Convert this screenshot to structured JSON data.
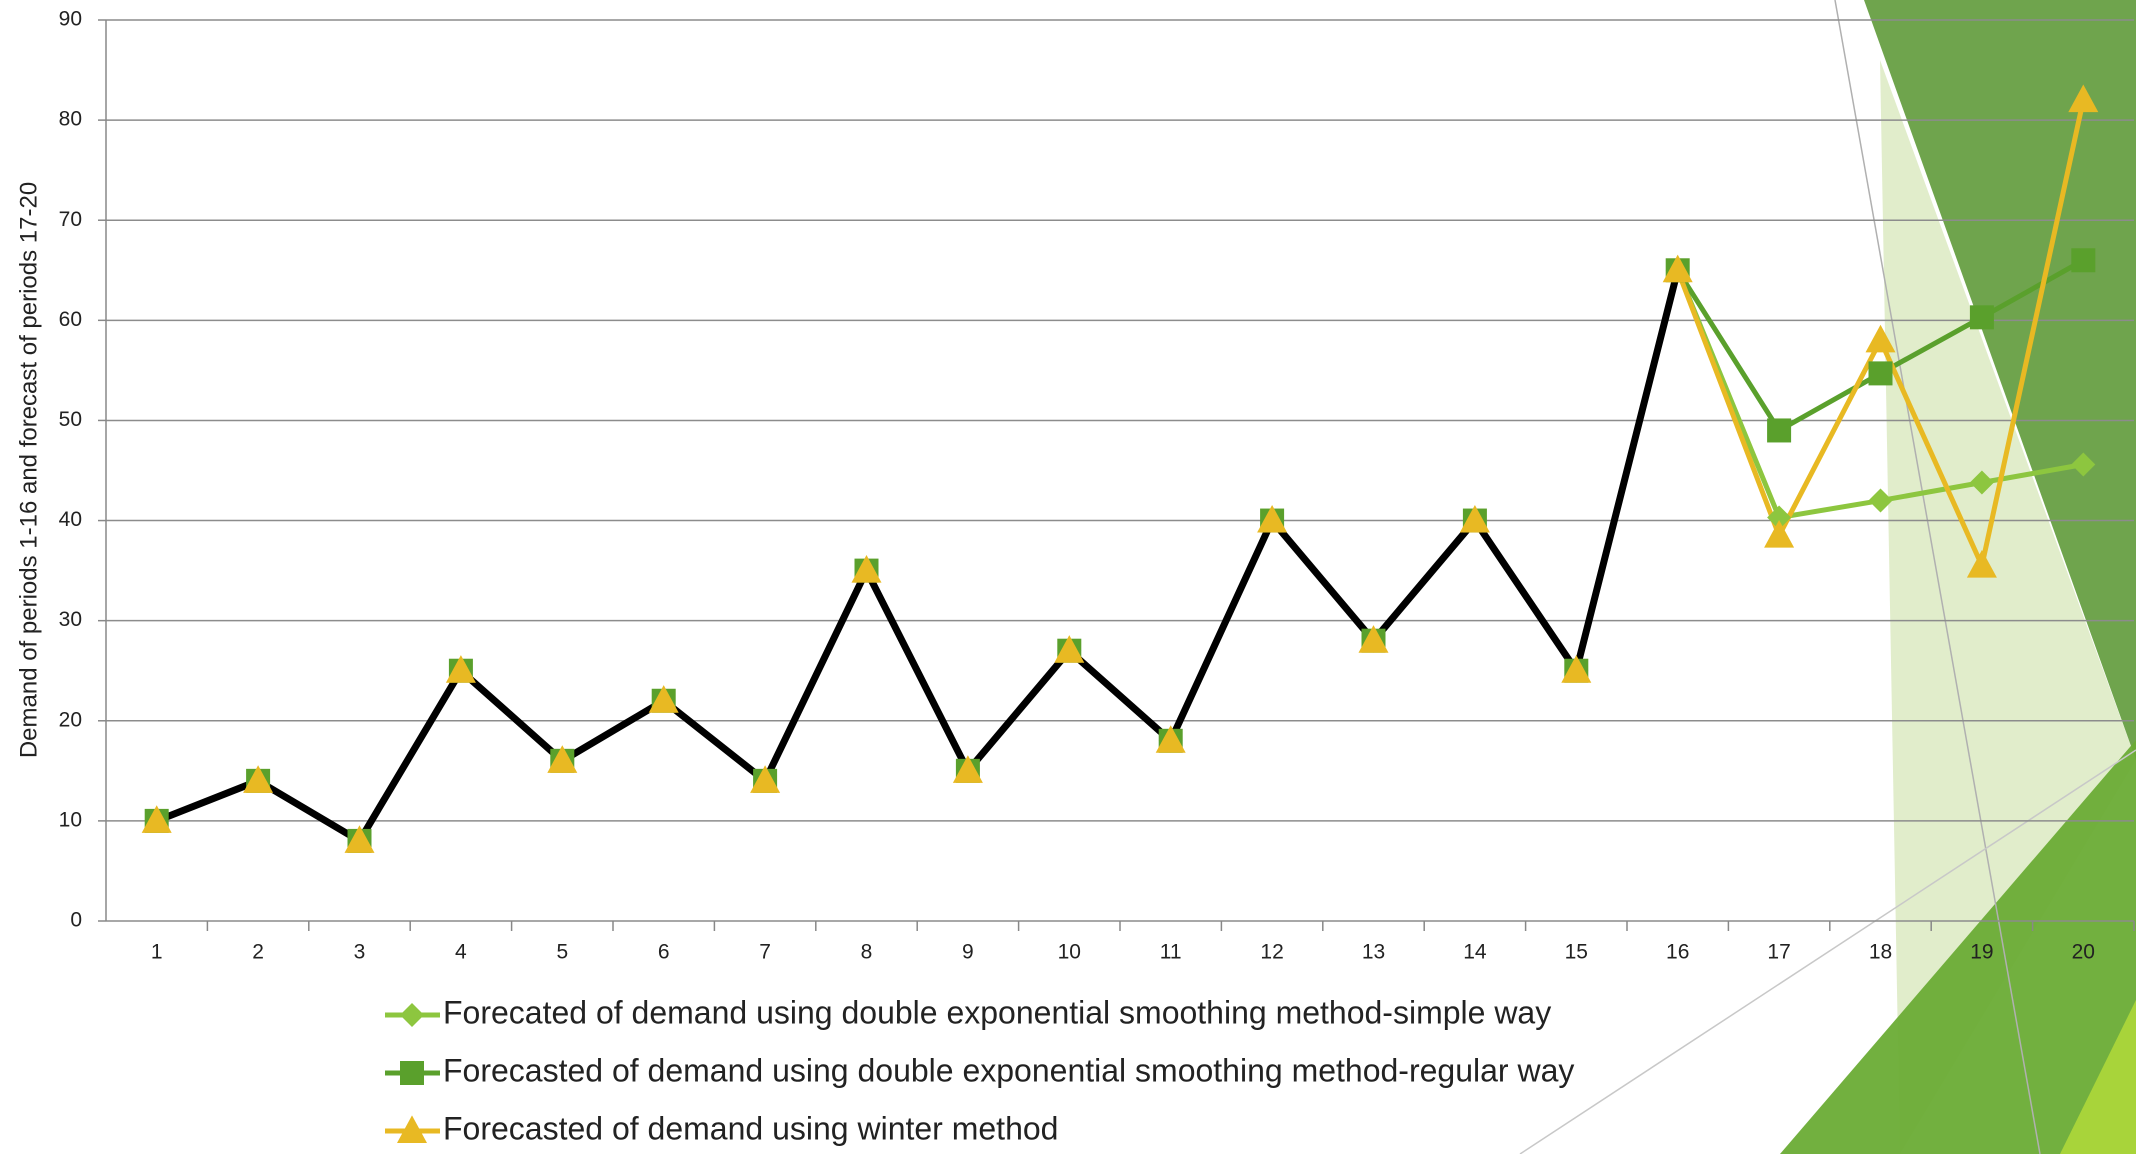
{
  "chart_data": {
    "type": "line",
    "y_axis_label": "Demand of periods 1-16 and forecast of periods 17-20",
    "categories": [
      "1",
      "2",
      "3",
      "4",
      "5",
      "6",
      "7",
      "8",
      "9",
      "10",
      "11",
      "12",
      "13",
      "14",
      "15",
      "16",
      "17",
      "18",
      "19",
      "20"
    ],
    "ylim": [
      0,
      90
    ],
    "yticks": [
      0,
      10,
      20,
      30,
      40,
      50,
      60,
      70,
      80,
      90
    ],
    "grid": true,
    "series": [
      {
        "name": "Forecated of demand using double exponential smoothing method-simple way",
        "color": "#8dc63f",
        "marker": "diamond",
        "values": [
          10,
          14,
          8,
          25,
          16,
          22,
          14,
          35,
          15,
          27,
          18,
          40,
          28,
          40,
          25,
          65,
          40.3,
          42,
          43.8,
          45.6
        ]
      },
      {
        "name": "Forecasted of demand using double exponential smoothing method-regular way",
        "color": "#5aa02c",
        "marker": "square",
        "values": [
          10,
          14,
          8,
          25,
          16,
          22,
          14,
          35,
          15,
          27,
          18,
          40,
          28,
          40,
          25,
          65,
          49,
          54.7,
          60.3,
          66
        ]
      },
      {
        "name": "Forecasted of demand using winter method",
        "color": "#e8b923",
        "marker": "triangle",
        "values": [
          10,
          14,
          8,
          25,
          16,
          22,
          14,
          35,
          15,
          27,
          18,
          40,
          28,
          40,
          25,
          65,
          38.5,
          58,
          35.5,
          82
        ]
      },
      {
        "color": "#000000",
        "values": [
          10,
          14,
          8,
          25,
          16,
          22,
          14,
          35,
          15,
          27,
          18,
          40,
          28,
          40,
          25,
          65,
          null,
          null,
          null,
          null
        ]
      }
    ]
  }
}
